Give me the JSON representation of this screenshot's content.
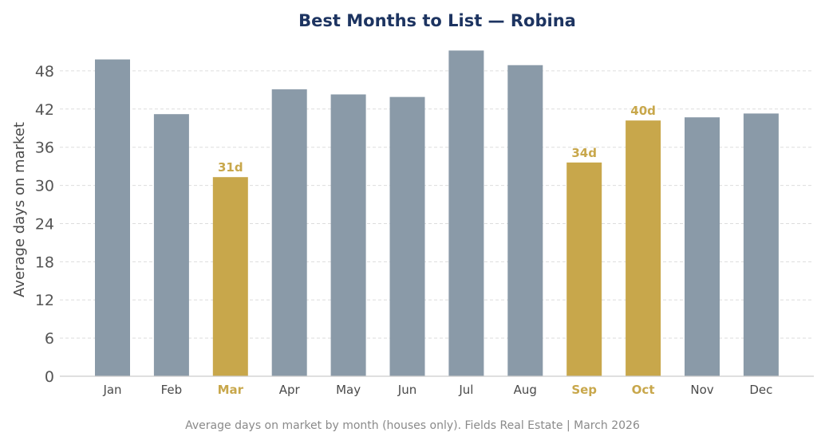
{
  "chart_data": {
    "type": "bar",
    "title": "Best Months to List — Robina",
    "ylabel": "Average days on market",
    "xlabel": "",
    "categories": [
      "Jan",
      "Feb",
      "Mar",
      "Apr",
      "May",
      "Jun",
      "Jul",
      "Aug",
      "Sep",
      "Oct",
      "Nov",
      "Dec"
    ],
    "values": [
      49.8,
      41.2,
      31.3,
      45.1,
      44.3,
      43.9,
      51.2,
      48.9,
      33.6,
      40.2,
      40.7,
      41.3
    ],
    "highlighted": [
      "Mar",
      "Sep",
      "Oct"
    ],
    "data_labels": [
      {
        "category": "Mar",
        "text": "31d"
      },
      {
        "category": "Sep",
        "text": "34d"
      },
      {
        "category": "Oct",
        "text": "40d"
      }
    ],
    "ylim": [
      0,
      52
    ],
    "yticks": [
      0,
      6,
      12,
      18,
      24,
      30,
      36,
      42,
      48
    ],
    "grid": true,
    "legend": "none",
    "colors": {
      "bar": "#8a9aa8",
      "highlight": "#c8a74b",
      "title": "#1d3461",
      "grid": "#dddddd",
      "axis": "#cccccc"
    }
  },
  "footer": "Average days on market by month (houses only). Fields Real Estate | March 2026"
}
